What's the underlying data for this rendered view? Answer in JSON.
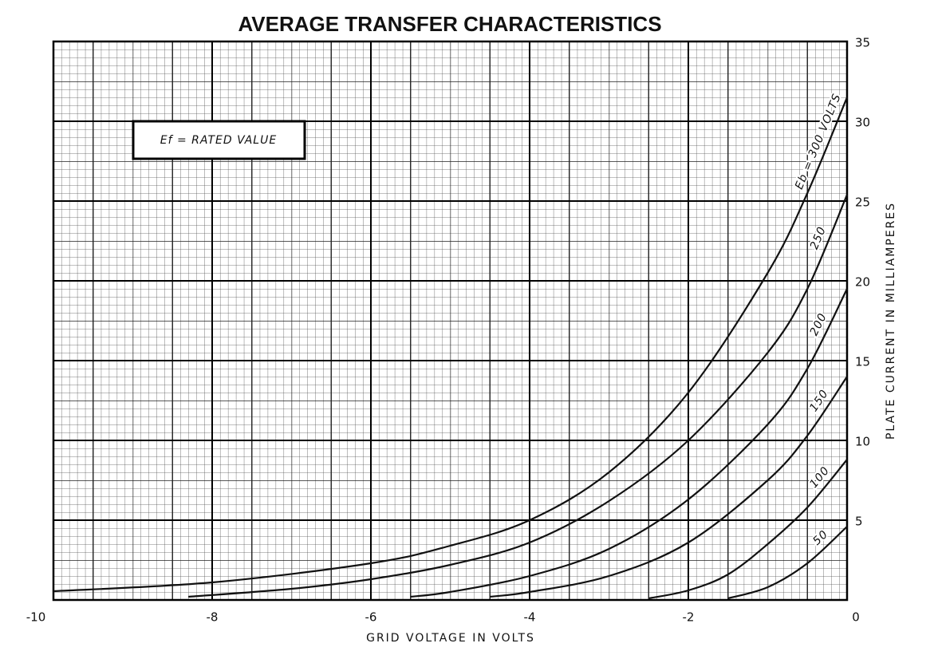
{
  "chart_data": {
    "type": "line",
    "title": "AVERAGE TRANSFER CHARACTERISTICS",
    "x_label": "GRID VOLTAGE IN VOLTS",
    "y_label": "PLATE CURRENT IN MILLIAMPERES",
    "annotation": "Ef = RATED VALUE",
    "xlim": [
      -10,
      0
    ],
    "ylim": [
      0,
      35
    ],
    "xticks": [
      -10,
      -8,
      -6,
      -4,
      -2,
      0
    ],
    "yticks": [
      5,
      10,
      15,
      20,
      25,
      30,
      35
    ],
    "grid": true,
    "color": "#111111",
    "series": [
      {
        "name": "Eb = 300 VOLTS",
        "x": [
          -10,
          -8,
          -6,
          -5,
          -4,
          -3,
          -2,
          -1,
          -0.5,
          0
        ],
        "values": [
          0.55,
          1.1,
          2.3,
          3.4,
          5.0,
          8.0,
          13,
          20.5,
          25.5,
          31.5
        ]
      },
      {
        "name": "250",
        "x": [
          -8.3,
          -7,
          -6,
          -5,
          -4,
          -3,
          -2,
          -1,
          -0.5,
          0
        ],
        "values": [
          0.2,
          0.7,
          1.3,
          2.2,
          3.6,
          6.2,
          10,
          15.5,
          19.5,
          25.4
        ]
      },
      {
        "name": "200",
        "x": [
          -5.5,
          -5,
          -4,
          -3,
          -2,
          -1,
          -0.5,
          0
        ],
        "values": [
          0.2,
          0.5,
          1.5,
          3.2,
          6.3,
          11,
          14.5,
          19.5
        ]
      },
      {
        "name": "150",
        "x": [
          -4.5,
          -4,
          -3,
          -2,
          -1,
          -0.5,
          0
        ],
        "values": [
          0.2,
          0.5,
          1.5,
          3.6,
          7.5,
          10.3,
          14
        ]
      },
      {
        "name": "100",
        "x": [
          -2.5,
          -2,
          -1.5,
          -1,
          -0.5,
          0
        ],
        "values": [
          0.1,
          0.6,
          1.6,
          3.5,
          5.8,
          8.8
        ]
      },
      {
        "name": "50",
        "x": [
          -1.5,
          -1,
          -0.5,
          0
        ],
        "values": [
          0.1,
          0.8,
          2.3,
          4.6
        ]
      }
    ]
  }
}
